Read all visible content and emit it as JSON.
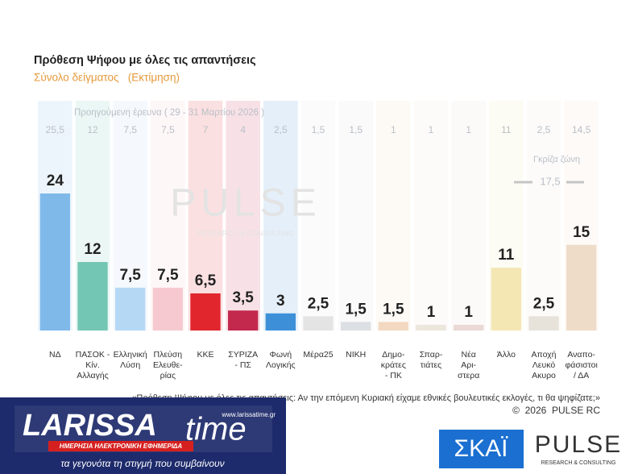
{
  "chart_data": {
    "type": "bar",
    "title": "Πρόθεση Ψήφου με όλες τις απαντήσεις",
    "subtitle": "Σύνολο δείγματος   (Εκτίμηση)",
    "categories": [
      "ΝΔ",
      "ΠΑΣΟΚ -\nΚίν.\nΑλλαγής",
      "Ελληνική\nΛύση",
      "Πλεύση\nΕλευθε-\nρίας",
      "ΚΚΕ",
      "ΣΥΡΙΖΑ\n- ΠΣ",
      "Φωνή\nΛογικής",
      "Μέρα25",
      "ΝΙΚΗ",
      "Δημο-\nκράτες\n- ΠΚ",
      "Σπαρ-\nτιάτες",
      "Νέα\nΑρι-\nστερα",
      "Άλλο",
      "Αποχή\nΛευκό\nΑκυρο",
      "Αναπο-\nφάσιστοι\n/ ΔΑ"
    ],
    "values": [
      24,
      12,
      7.5,
      7.5,
      6.5,
      3.5,
      3,
      2.5,
      1.5,
      1.5,
      1,
      1,
      11,
      2.5,
      15
    ],
    "value_labels": [
      "24",
      "12",
      "7,5",
      "7,5",
      "6,5",
      "3,5",
      "3",
      "2,5",
      "1,5",
      "1,5",
      "1",
      "1",
      "11",
      "2,5",
      "15"
    ],
    "colors": [
      "#7fb9e9",
      "#74c6b4",
      "#b5d8f4",
      "#f6c9d0",
      "#e2262d",
      "#c3284d",
      "#3d8fd8",
      "#e4e4e4",
      "#dcdfe4",
      "#f3d9c2",
      "#ece6dc",
      "#ead9d6",
      "#f4e7b4",
      "#e8e3da",
      "#eedcc8"
    ],
    "previous": {
      "label": "Προηγούμενη έρευνα ( 29 - 31 Μαρτίου 2026 )",
      "values": [
        25.5,
        12,
        7.5,
        7.5,
        7,
        4,
        2.5,
        1.5,
        1.5,
        1,
        1,
        1,
        11,
        2.5,
        14.5
      ],
      "value_labels": [
        "25,5",
        "12",
        "7,5",
        "7,5",
        "7",
        "4",
        "2,5",
        "1,5",
        "1,5",
        "1",
        "1",
        "1",
        "11",
        "2,5",
        "14,5"
      ]
    },
    "grey_zone": {
      "label": "Γκρίζα ζώνη",
      "value": 17.5,
      "value_label": "17,5"
    },
    "question": "«Πρόθεση Ψήφου με όλες τις απαντήσεις: Αν την επόμενη Κυριακή είχαμε εθνικές βουλευτικές εκλογές, τι θα ψηφίζατε;»",
    "copyright": "©  2026  PULSE RC",
    "watermark": "PULSE",
    "watermark_sub": "RESEARCH & CONSULTING"
  },
  "overlay": {
    "brand_left": "LARISSA",
    "brand_right": "time",
    "url": "www.larissatime.gr",
    "tagline": "ΗΜΕΡΗΣΙΑ ΗΛΕΚΤΡΟΝΙΚΗ ΕΦΗΜΕΡΙΔΑ",
    "slogan": "τα γεγονότα τη στιγμή που συμβαίνουν"
  },
  "footer_logos": {
    "skai": "ΣΚΑΪ",
    "pulse": "PULSE",
    "pulse_sub": "RESEARCH & CONSULTING"
  }
}
